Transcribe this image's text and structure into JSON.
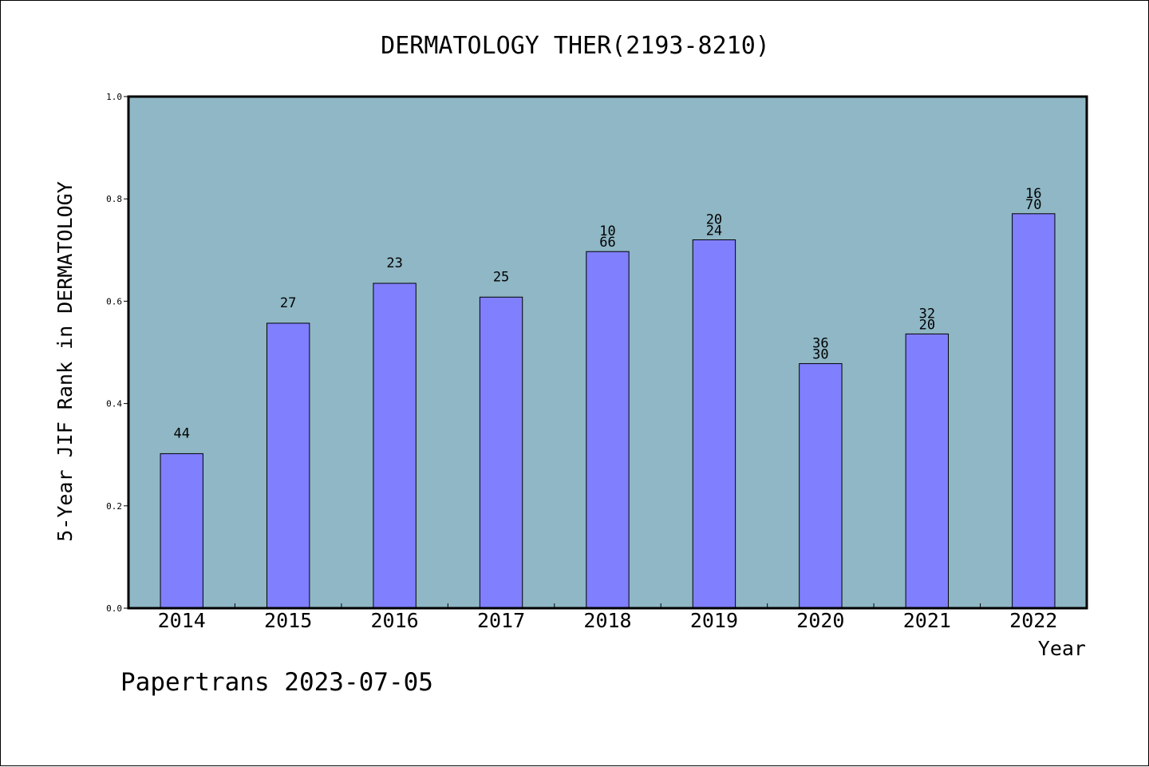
{
  "chart_data": {
    "type": "bar",
    "title": "DERMATOLOGY THER(2193-8210)",
    "xlabel": "Year",
    "ylabel": "5-Year JIF Rank in DERMATOLOGY",
    "ylim": [
      0.0,
      1.0
    ],
    "yticks": [
      "0.0",
      "0.2",
      "0.4",
      "0.6",
      "0.8",
      "1.0"
    ],
    "ytick_values": [
      0.0,
      0.2,
      0.4,
      0.6,
      0.8,
      1.0
    ],
    "categories": [
      "2014",
      "2015",
      "2016",
      "2017",
      "2018",
      "2019",
      "2020",
      "2021",
      "2022"
    ],
    "values": [
      0.302,
      0.557,
      0.635,
      0.608,
      0.697,
      0.72,
      0.478,
      0.536,
      0.771
    ],
    "data_labels": [
      [
        "44"
      ],
      [
        "27"
      ],
      [
        "23"
      ],
      [
        "25"
      ],
      [
        "10",
        "66"
      ],
      [
        "20",
        "24"
      ],
      [
        "36",
        "30"
      ],
      [
        "32",
        "20"
      ],
      [
        "16",
        "70"
      ]
    ],
    "colors": {
      "plot_background": "#8fb7c5",
      "bar_fill": "#8080ff",
      "bar_stroke": "#000000"
    },
    "grid": false,
    "legend": "none"
  },
  "footer": {
    "text": "Papertrans 2023-07-05"
  }
}
